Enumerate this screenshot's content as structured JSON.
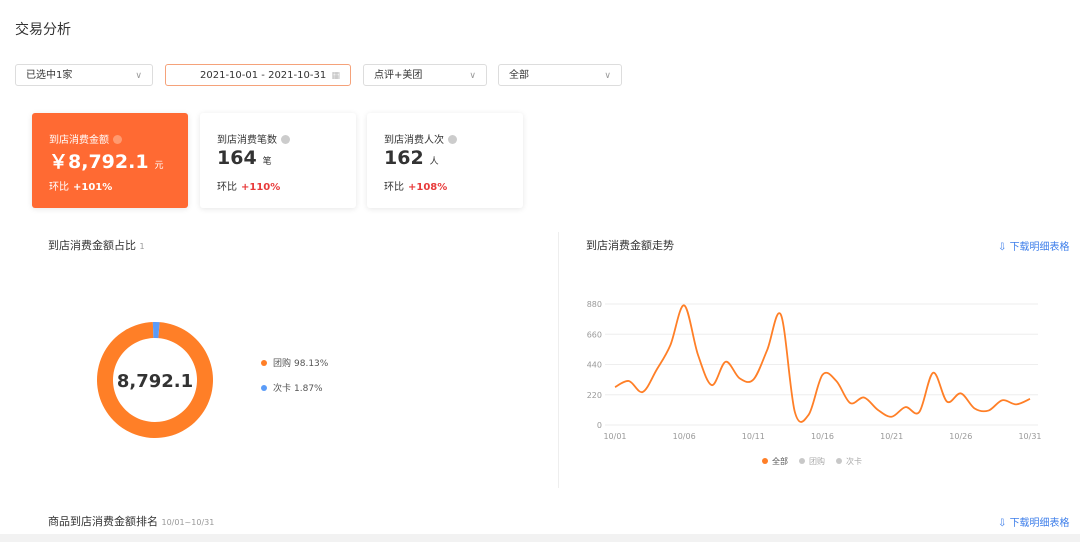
{
  "header": {
    "title": "交易分析"
  },
  "filters": [
    {
      "label": "已选中1家"
    },
    {
      "label": "2021-10-01 - 2021-10-31"
    },
    {
      "label": "点评+美团"
    },
    {
      "label": "全部"
    }
  ],
  "kpis": [
    {
      "label": "到店消费金额",
      "value": "￥8,792.1",
      "unit": "元",
      "compare_label": "环比",
      "change": "+101%"
    },
    {
      "label": "到店消费笔数",
      "value": "164",
      "unit": "笔",
      "compare_label": "环比",
      "change": "+110%"
    },
    {
      "label": "到店消费人次",
      "value": "162",
      "unit": "人",
      "compare_label": "环比",
      "change": "+108%"
    }
  ],
  "chart_data": [
    {
      "type": "donut",
      "title": "到店消费金额占比",
      "title_note": "1",
      "center_label": "8,792.1",
      "categories": [
        "团购",
        "次卡"
      ],
      "values": [
        98.13,
        1.87
      ],
      "value_labels": [
        "98.13%",
        "1.87%"
      ],
      "colors": [
        "#ff7f27",
        "#5b9cf8"
      ]
    },
    {
      "type": "line",
      "title": "到店消费金额走势",
      "action": "下载明细表格",
      "categories": [
        "10/01",
        null,
        null,
        null,
        null,
        "10/06",
        null,
        null,
        null,
        null,
        "10/11",
        null,
        null,
        null,
        null,
        "10/16",
        null,
        null,
        null,
        null,
        "10/21",
        null,
        null,
        null,
        null,
        "10/26",
        null,
        null,
        null,
        null,
        "10/31"
      ],
      "ylim": [
        0,
        880
      ],
      "yticks": [
        0,
        220,
        440,
        660,
        880
      ],
      "grid": true,
      "series": [
        {
          "name": "全部",
          "color": "#ff7f27",
          "values": [
            276,
            320,
            240,
            400,
            580,
            870,
            510,
            290,
            460,
            340,
            330,
            545,
            800,
            95,
            75,
            365,
            320,
            160,
            200,
            110,
            60,
            130,
            95,
            380,
            170,
            230,
            120,
            105,
            180,
            150,
            190
          ]
        }
      ],
      "hidden_series": [
        {
          "name": "团购",
          "color": "#c8c8c8"
        },
        {
          "name": "次卡",
          "color": "#c8c8c8"
        }
      ]
    }
  ],
  "ranking": {
    "title": "商品到店消费金额排名",
    "period": "10/01~10/31",
    "action": "下载明细表格"
  }
}
